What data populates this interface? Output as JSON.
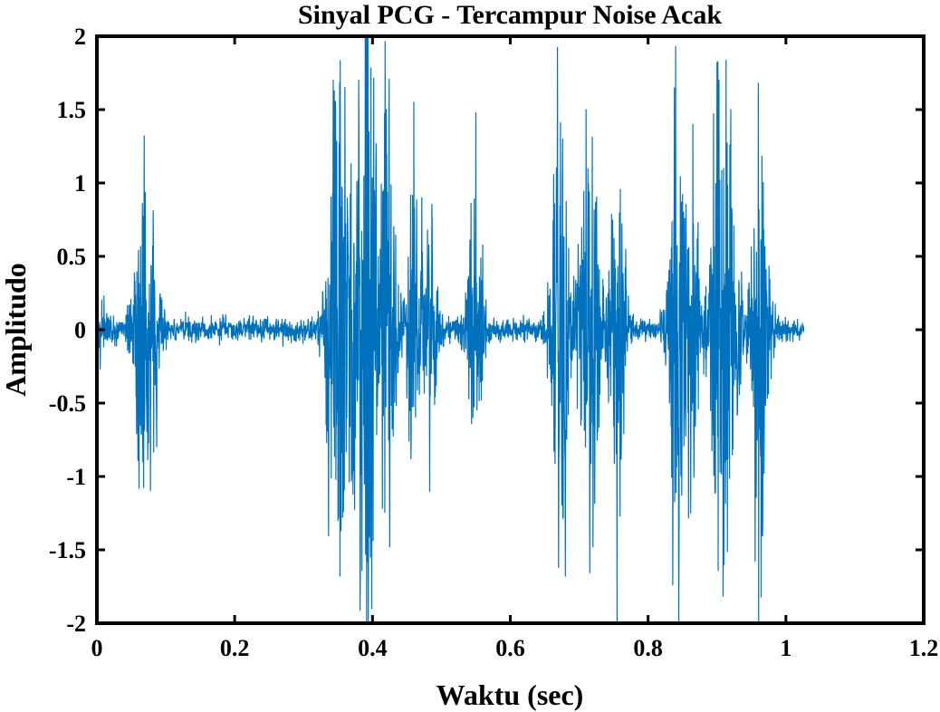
{
  "chart_data": {
    "type": "line",
    "title": "Sinyal PCG - Tercampur Noise Acak",
    "xlabel": "Waktu (sec)",
    "ylabel": "Amplitudo",
    "xlim": [
      0,
      1.2
    ],
    "ylim": [
      -2,
      2
    ],
    "xticks": [
      0,
      0.2,
      0.4,
      0.6,
      0.8,
      1,
      1.2
    ],
    "xtick_labels": [
      "0",
      "0.2",
      "0.4",
      "0.6",
      "0.8",
      "1",
      "1.2"
    ],
    "yticks": [
      2,
      1.5,
      1,
      0.5,
      0,
      -0.5,
      -1,
      -1.5,
      -2
    ],
    "ytick_labels": [
      "2",
      "1.5",
      "1",
      "0.5",
      "0",
      "-0.5",
      "-1",
      "-1.5",
      "-2"
    ],
    "grid": false,
    "line_color": "#0072BD",
    "series": [
      {
        "x": [
          0.005,
          0.06,
          0.063,
          0.066,
          0.075,
          0.082,
          0.343,
          0.35,
          0.36,
          0.38,
          0.39,
          0.393,
          0.395,
          0.42,
          0.425,
          0.46,
          0.483,
          0.55,
          0.67,
          0.676,
          0.71,
          0.72,
          0.755,
          0.84,
          0.845,
          0.865,
          0.9,
          0.91,
          0.92,
          0.96,
          0.965
        ],
        "y": [
          -0.2,
          0.35,
          -0.65,
          0.86,
          -0.77,
          0.61,
          1.7,
          -1.3,
          1.65,
          1.7,
          -1.53,
          -1.58,
          1.35,
          1.5,
          -1.48,
          1.55,
          -1.1,
          1.48,
          -1.62,
          1.3,
          1.5,
          -1.48,
          -2.0,
          1.93,
          -1.35,
          1.4,
          1.82,
          -1.6,
          1.5,
          1.68,
          -1.4
        ]
      }
    ]
  }
}
